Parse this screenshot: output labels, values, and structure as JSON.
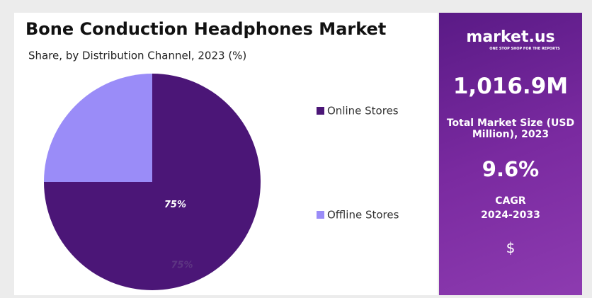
{
  "chart_data": {
    "type": "pie",
    "title": "Bone Conduction Headphones Market",
    "subtitle": "Share, by Distribution Channel, 2023 (%)",
    "categories": [
      "Online Stores",
      "Offline Stores"
    ],
    "values": [
      75,
      25
    ],
    "value_labels": [
      "75%",
      null
    ],
    "colors": [
      "#4b1677",
      "#9a8cf8"
    ],
    "annotations": [
      "75%"
    ],
    "legend": "right"
  },
  "panel": {
    "brand": "market.us",
    "tagline": "ONE STOP SHOP FOR THE REPORTS",
    "market_size": "1,016.9M",
    "market_size_label": "Total Market Size (USD Million), 2023",
    "cagr": "9.6%",
    "cagr_label": "CAGR",
    "cagr_period": "2024-2033",
    "icon_text": "$"
  }
}
